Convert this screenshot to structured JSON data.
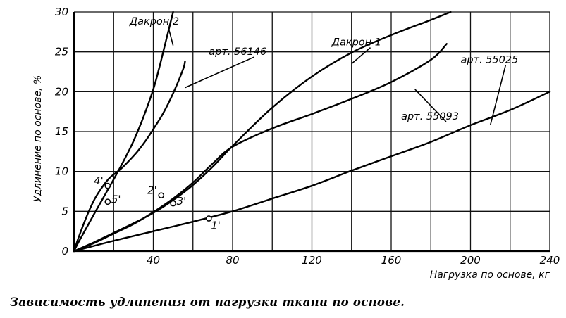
{
  "chart_data": {
    "type": "line",
    "title": "",
    "caption": "Зависимость удлинения от нагрузки ткани по основе.",
    "xlabel": "Нагрузка по основе, кг",
    "ylabel": "Удлинение по основе, %",
    "xlim": [
      0,
      240
    ],
    "ylim": [
      0,
      30
    ],
    "x_ticks": [
      40,
      80,
      120,
      160,
      200,
      240
    ],
    "y_ticks": [
      0,
      5,
      10,
      15,
      20,
      25,
      30
    ],
    "x_tick_labels": [
      "40",
      "80",
      "120",
      "160",
      "200",
      "240"
    ],
    "y_tick_labels": [
      "0",
      "5",
      "10",
      "15",
      "20",
      "25",
      "30"
    ],
    "grid": true,
    "grid_x_step": 20,
    "grid_y_step": 5,
    "legend": "none",
    "series": [
      {
        "name": "Дакрон 2",
        "x": [
          0,
          2,
          6,
          10,
          15,
          20,
          25,
          30,
          35,
          40,
          43,
          45,
          47,
          49,
          50
        ],
        "y": [
          0,
          1.0,
          2.8,
          4.6,
          6.8,
          9.0,
          11.3,
          13.8,
          16.8,
          20.3,
          23.0,
          25.0,
          27.0,
          29.0,
          30.0
        ]
      },
      {
        "name": "арт. 56146",
        "x": [
          0,
          2,
          5,
          8,
          11,
          15,
          18,
          21,
          24,
          28,
          32,
          36,
          40,
          45,
          50,
          55,
          56
        ],
        "y": [
          0,
          1.5,
          3.5,
          5.3,
          6.8,
          8.3,
          9.2,
          9.8,
          10.4,
          11.4,
          12.5,
          13.8,
          15.3,
          17.3,
          19.8,
          22.8,
          23.8
        ]
      },
      {
        "name": "Дакрон 1",
        "x": [
          0,
          10,
          20,
          30,
          40,
          50,
          60,
          70,
          80,
          100,
          120,
          140,
          160,
          180,
          190
        ],
        "y": [
          0,
          1.1,
          2.3,
          3.5,
          4.8,
          6.4,
          8.3,
          10.6,
          13.2,
          18.0,
          21.9,
          24.9,
          27.1,
          29.0,
          30.0
        ]
      },
      {
        "name": "арт. 55093",
        "x": [
          0,
          10,
          20,
          30,
          40,
          50,
          60,
          70,
          80,
          100,
          120,
          140,
          160,
          180,
          188
        ],
        "y": [
          0,
          1.0,
          2.2,
          3.4,
          4.9,
          6.6,
          8.6,
          11.0,
          13.1,
          15.4,
          17.2,
          19.1,
          21.2,
          24.0,
          26.0
        ]
      },
      {
        "name": "арт. 55025",
        "x": [
          0,
          20,
          40,
          60,
          80,
          100,
          120,
          140,
          160,
          180,
          200,
          220,
          240
        ],
        "y": [
          0,
          1.3,
          2.5,
          3.7,
          5.0,
          6.6,
          8.2,
          10.1,
          11.9,
          13.7,
          15.8,
          17.7,
          20.0
        ]
      }
    ],
    "point_markers": [
      {
        "label": "1'",
        "x": 68,
        "y": 4.1
      },
      {
        "label": "2'",
        "x": 44,
        "y": 7.0
      },
      {
        "label": "3'",
        "x": 50,
        "y": 6.0
      },
      {
        "label": "4'",
        "x": 17,
        "y": 8.2
      },
      {
        "label": "5'",
        "x": 17,
        "y": 6.2
      }
    ],
    "series_labels": [
      {
        "text": "Дакрон 2",
        "at_x": 28,
        "at_y": 28.4,
        "anchor_x": 50,
        "anchor_y": 25.8
      },
      {
        "text": "арт. 56146",
        "at_x": 68,
        "at_y": 24.6,
        "anchor_x": 56,
        "anchor_y": 20.5
      },
      {
        "text": "Дакрон 1",
        "at_x": 130,
        "at_y": 25.8,
        "anchor_x": 140,
        "anchor_y": 23.5
      },
      {
        "text": "арт. 55093",
        "at_x": 165,
        "at_y": 16.5,
        "anchor_x": 172,
        "anchor_y": 20.3
      },
      {
        "text": "арт. 55025",
        "at_x": 195,
        "at_y": 23.6,
        "anchor_x": 210,
        "anchor_y": 15.8
      }
    ]
  }
}
